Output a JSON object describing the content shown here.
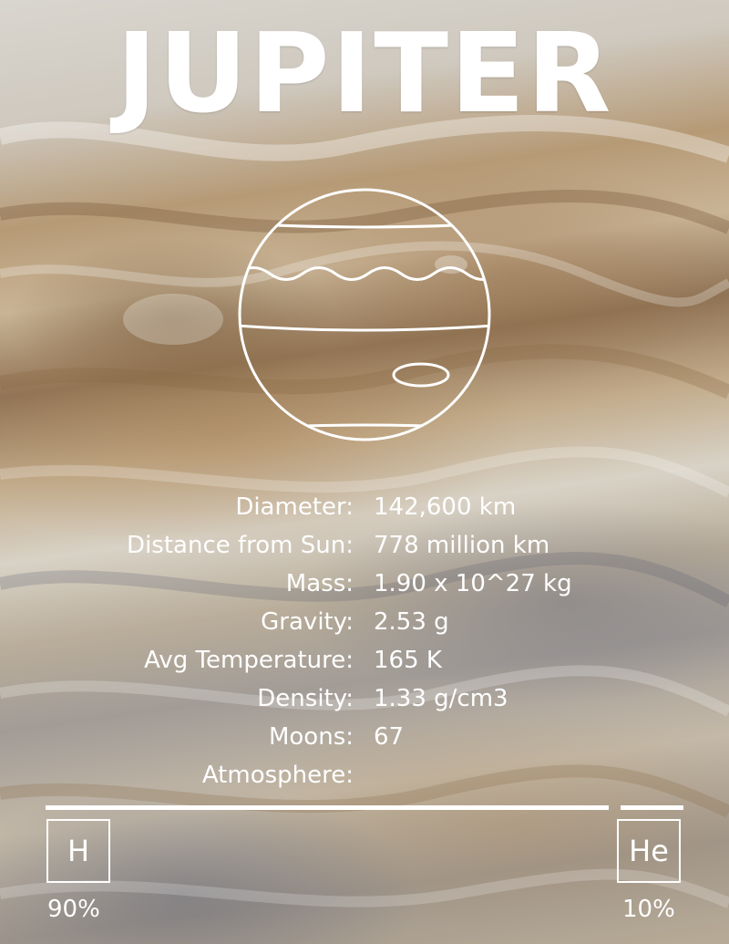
{
  "title": "JUPITER",
  "facts": [
    {
      "label": "Diameter:",
      "value": "142,600 km"
    },
    {
      "label": "Distance from Sun:",
      "value": "778 million km"
    },
    {
      "label": "Mass:",
      "value": "1.90 x 10^27 kg"
    },
    {
      "label": "Gravity:",
      "value": "2.53 g"
    },
    {
      "label": "Avg Temperature:",
      "value": "165 K"
    },
    {
      "label": "Density:",
      "value": "1.33 g/cm3"
    },
    {
      "label": "Moons:",
      "value": "67"
    },
    {
      "label": "Atmosphere:",
      "value": ""
    }
  ],
  "atmosphere": [
    {
      "symbol": "H",
      "percent_label": "90%",
      "fraction": 0.9
    },
    {
      "symbol": "He",
      "percent_label": "10%",
      "fraction": 0.1
    }
  ],
  "colors": {
    "text": "#ffffff"
  },
  "icons": {
    "planet": "jupiter-outline-icon"
  }
}
